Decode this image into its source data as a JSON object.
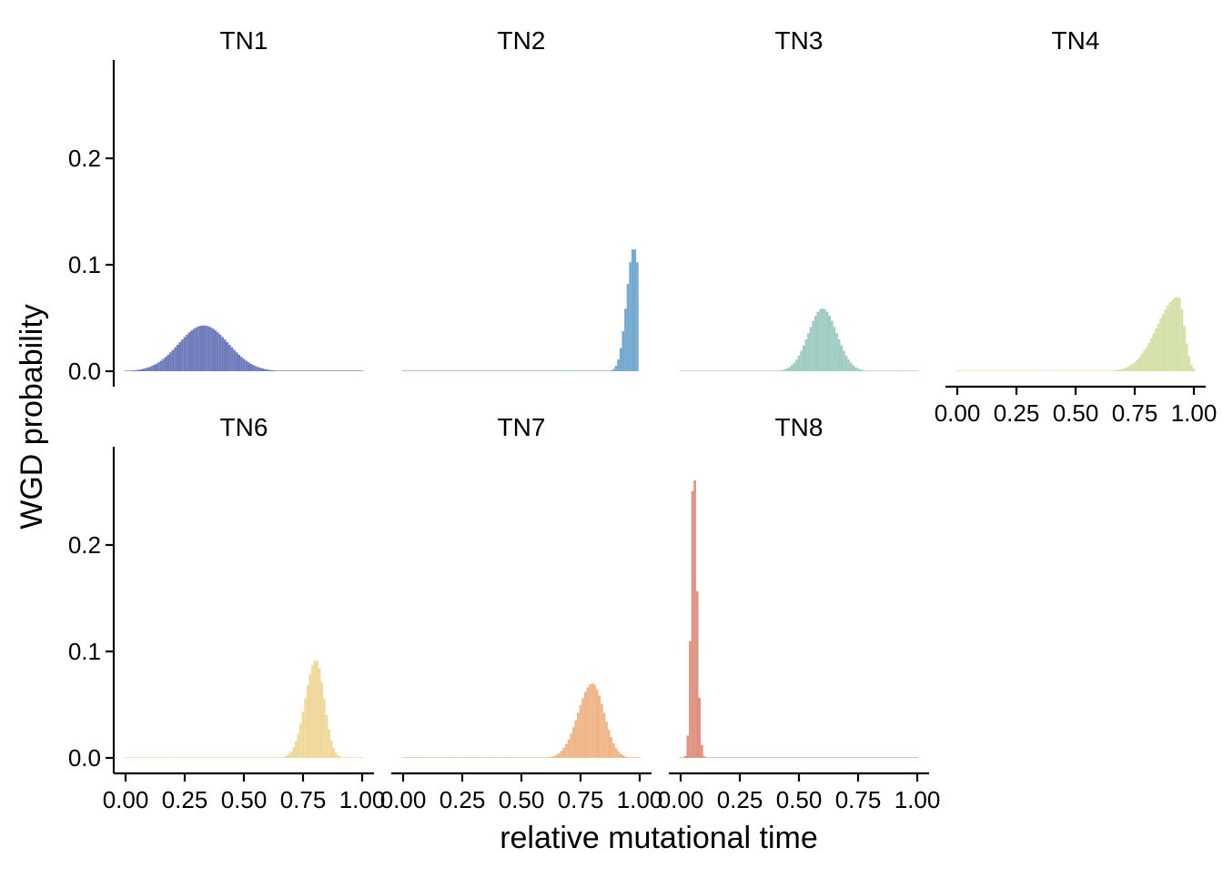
{
  "chart_data": {
    "type": "bar",
    "ylabel": "WGD probability",
    "xlabel": "relative mutational time",
    "xlim": [
      0,
      1
    ],
    "ylim": [
      0,
      0.29
    ],
    "xticks": [
      "0.00",
      "0.25",
      "0.50",
      "0.75",
      "1.00"
    ],
    "yticks": [
      "0.0",
      "0.1",
      "0.2"
    ],
    "bin_width": 0.01,
    "facets": [
      {
        "label": "TN1",
        "color": "#6e7cbb",
        "peak_x": 0.33,
        "peak_y": 0.043,
        "sd_left": 0.105,
        "sd_right": 0.105,
        "x_max": 1.0
      },
      {
        "label": "TN2",
        "color": "#76a9cf",
        "peak_x": 0.975,
        "peak_y": 0.116,
        "sd_left": 0.03,
        "sd_right": 0.03,
        "x_max": 0.995
      },
      {
        "label": "TN3",
        "color": "#9fcdc4",
        "peak_x": 0.6,
        "peak_y": 0.059,
        "sd_left": 0.06,
        "sd_right": 0.06,
        "x_max": 1.0
      },
      {
        "label": "TN4",
        "color": "#d4e1a8",
        "peak_x": 0.935,
        "peak_y": 0.07,
        "sd_left": 0.09,
        "sd_right": 0.025,
        "x_max": 1.0
      },
      {
        "label": "TN6",
        "color": "#efd99a",
        "peak_x": 0.805,
        "peak_y": 0.092,
        "sd_left": 0.045,
        "sd_right": 0.035,
        "x_max": 1.0
      },
      {
        "label": "TN7",
        "color": "#efb68a",
        "peak_x": 0.8,
        "peak_y": 0.07,
        "sd_left": 0.06,
        "sd_right": 0.05,
        "x_max": 1.0
      },
      {
        "label": "TN8",
        "color": "#e09281",
        "peak_x": 0.055,
        "peak_y": 0.278,
        "sd_left": 0.011,
        "sd_right": 0.014,
        "x_max": 1.0
      }
    ]
  }
}
